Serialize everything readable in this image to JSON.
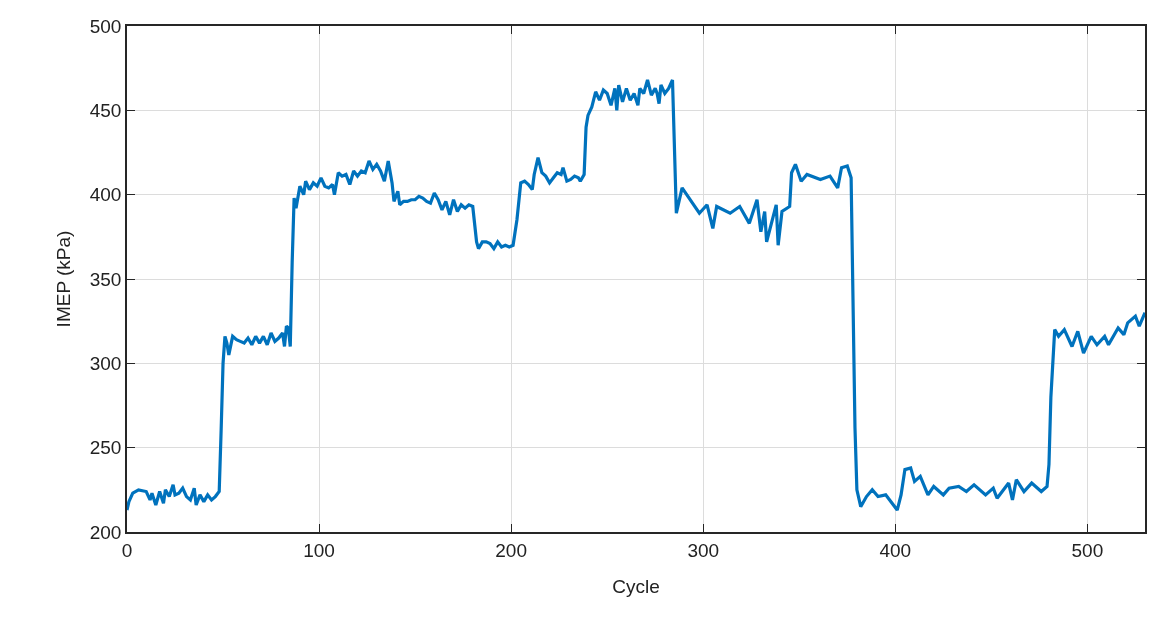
{
  "chart_data": {
    "type": "line",
    "xlabel": "Cycle",
    "ylabel": "IMEP (kPa)",
    "xlim": [
      0,
      530
    ],
    "xticks": [
      0,
      100,
      200,
      300,
      400,
      500
    ],
    "ylim": [
      200,
      500
    ],
    "yticks": [
      200,
      250,
      300,
      350,
      400,
      450,
      500
    ],
    "grid": true,
    "marker": "none",
    "line_style": "solid",
    "x": [
      0,
      1,
      3,
      6,
      10,
      12,
      13,
      15,
      17,
      19,
      20,
      22,
      24,
      25,
      27,
      29,
      31,
      33,
      35,
      36,
      38,
      40,
      42,
      44,
      46,
      48,
      49,
      50,
      51,
      52,
      53,
      55,
      57,
      59,
      61,
      63,
      65,
      67,
      69,
      71,
      73,
      75,
      77,
      79,
      81,
      82,
      83,
      84,
      85,
      86,
      87,
      88,
      90,
      92,
      93,
      95,
      97,
      99,
      101,
      103,
      105,
      107,
      108,
      110,
      112,
      114,
      116,
      118,
      120,
      122,
      124,
      126,
      128,
      130,
      132,
      134,
      136,
      138,
      139,
      141,
      142,
      144,
      146,
      148,
      150,
      152,
      154,
      156,
      158,
      160,
      162,
      164,
      166,
      168,
      170,
      172,
      174,
      176,
      178,
      180,
      182,
      183,
      185,
      187,
      189,
      191,
      193,
      195,
      197,
      199,
      201,
      203,
      205,
      207,
      209,
      211,
      212,
      214,
      216,
      218,
      220,
      222,
      224,
      226,
      227,
      229,
      231,
      233,
      235,
      236,
      238,
      239,
      240,
      242,
      244,
      246,
      248,
      250,
      252,
      254,
      255,
      256,
      258,
      260,
      262,
      264,
      266,
      267,
      269,
      271,
      273,
      275,
      276,
      277,
      278,
      280,
      282,
      284,
      286,
      289,
      298,
      302,
      305,
      307,
      314,
      319,
      324,
      328,
      330,
      332,
      333,
      338,
      339,
      341,
      345,
      346,
      348,
      351,
      354,
      361,
      366,
      370,
      372,
      375,
      377,
      379,
      380,
      382,
      385,
      388,
      391,
      395,
      401,
      403,
      405,
      408,
      410,
      413,
      417,
      420,
      425,
      428,
      433,
      437,
      441,
      447,
      451,
      453,
      459,
      461,
      463,
      467,
      471,
      476,
      479,
      480,
      481,
      483,
      485,
      488,
      492,
      495,
      498,
      502,
      505,
      509,
      511,
      516,
      519,
      521,
      525,
      527,
      530
    ],
    "series": [
      {
        "color": "#0072bd",
        "values": [
          213,
          218,
          223,
          225,
          224,
          219,
          223,
          216,
          224,
          217,
          225,
          221,
          228,
          222,
          223,
          226,
          221,
          219,
          226,
          216,
          222,
          218,
          222,
          219,
          221,
          224,
          260,
          300,
          316,
          312,
          305,
          316,
          314,
          313,
          312,
          315,
          311,
          316,
          312,
          316,
          311,
          318,
          313,
          315,
          318,
          310,
          322,
          321,
          310,
          360,
          398,
          392,
          405,
          400,
          408,
          403,
          407,
          405,
          410,
          405,
          404,
          406,
          400,
          413,
          411,
          412,
          406,
          414,
          411,
          414,
          413,
          420,
          415,
          418,
          414,
          408,
          420,
          407,
          396,
          402,
          394,
          396,
          396,
          397,
          397,
          399,
          398,
          396,
          395,
          401,
          397,
          391,
          396,
          388,
          397,
          390,
          394,
          392,
          394,
          393,
          372,
          368,
          372,
          372,
          371,
          368,
          372,
          369,
          370,
          369,
          370,
          385,
          407,
          408,
          406,
          403,
          412,
          422,
          413,
          411,
          407,
          410,
          413,
          412,
          416,
          408,
          409,
          411,
          410,
          408,
          412,
          440,
          447,
          452,
          461,
          456,
          462,
          460,
          453,
          463,
          450,
          465,
          455,
          463,
          456,
          460,
          453,
          463,
          460,
          468,
          459,
          463,
          460,
          454,
          465,
          460,
          463,
          468,
          389,
          404,
          389,
          394,
          380,
          393,
          389,
          393,
          383,
          397,
          378,
          390,
          372,
          394,
          370,
          390,
          393,
          413,
          418,
          408,
          412,
          409,
          411,
          404,
          416,
          417,
          410,
          262,
          225,
          215,
          221,
          225,
          221,
          222,
          213,
          222,
          237,
          238,
          230,
          233,
          222,
          227,
          222,
          226,
          227,
          224,
          228,
          222,
          226,
          220,
          229,
          219,
          231,
          224,
          229,
          224,
          227,
          240,
          280,
          320,
          316,
          320,
          310,
          319,
          306,
          316,
          311,
          316,
          311,
          321,
          317,
          324,
          328,
          322,
          330
        ]
      }
    ]
  }
}
